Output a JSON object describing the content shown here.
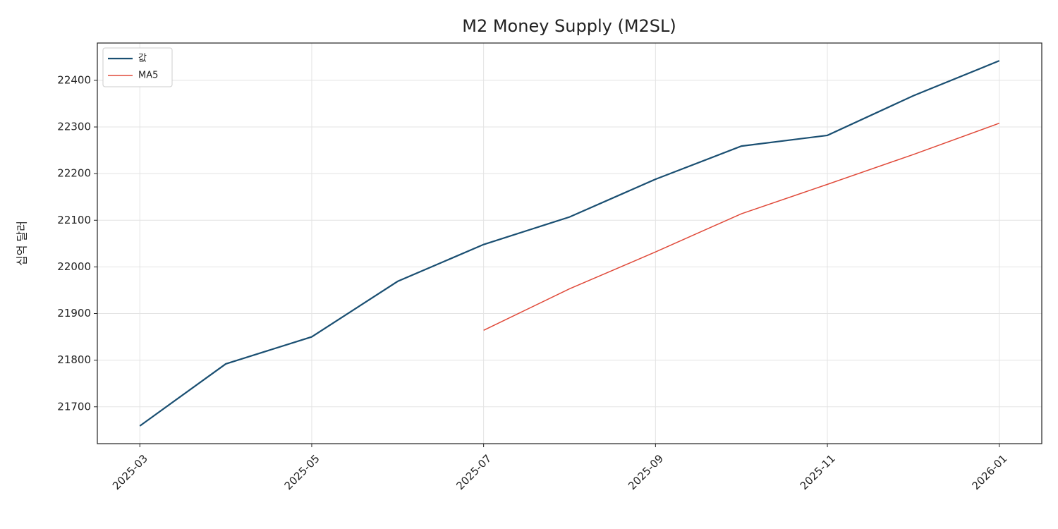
{
  "chart_data": {
    "type": "line",
    "title": "M2 Money Supply (M2SL)",
    "y_label": "십억 달러",
    "x": [
      "2025-03",
      "2025-04",
      "2025-05",
      "2025-06",
      "2025-07",
      "2025-08",
      "2025-09",
      "2025-10",
      "2025-11",
      "2025-12",
      "2026-01"
    ],
    "xticks": [
      "2025-03",
      "2025-05",
      "2025-07",
      "2025-09",
      "2025-11",
      "2026-01"
    ],
    "series": [
      {
        "name": "값",
        "color": "#1a4f72",
        "values": [
          21659,
          21792,
          21850,
          21969,
          22048,
          22107,
          22188,
          22259,
          22282,
          22367,
          22442
        ]
      },
      {
        "name": "MA5",
        "color": "#e04a3a",
        "values": [
          null,
          null,
          null,
          null,
          21864,
          21953,
          22032,
          22114,
          22177,
          22241,
          22308
        ]
      }
    ],
    "ylim": [
      21621,
      22480
    ],
    "yticks": [
      21700,
      21800,
      21900,
      22000,
      22100,
      22200,
      22300,
      22400
    ],
    "grid": true,
    "legend": "upper-left"
  }
}
